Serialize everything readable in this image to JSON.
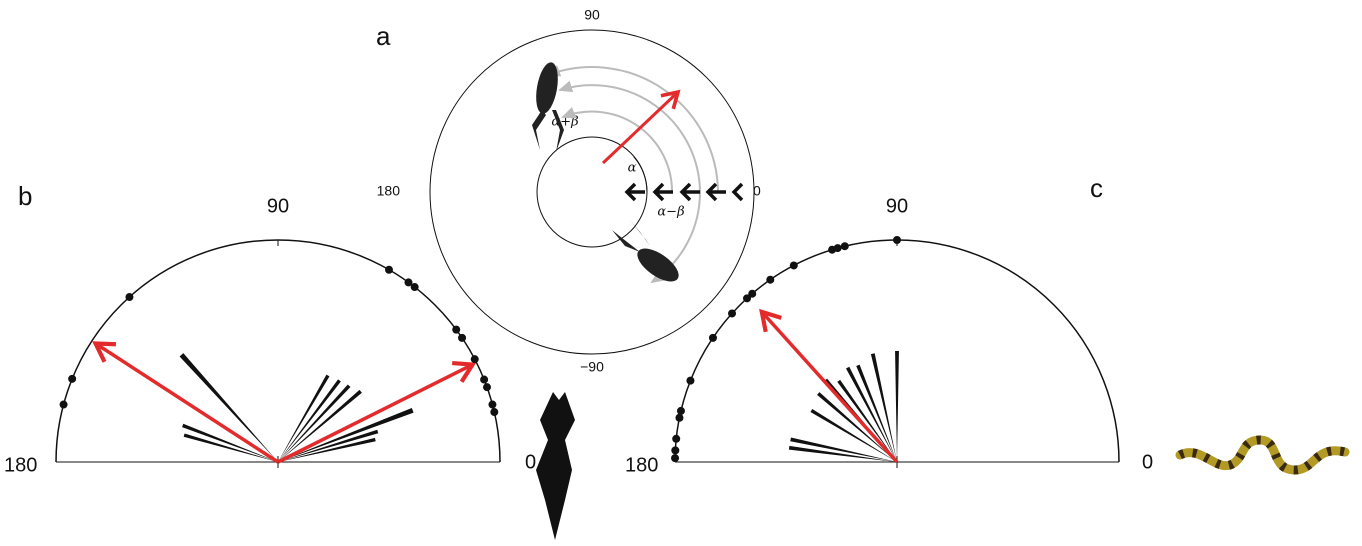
{
  "panel_a": {
    "label": "a",
    "angle_labels": {
      "top": "90",
      "bottom": "−90",
      "left": "180",
      "right": "0"
    },
    "angles": {
      "sum": "α+β",
      "alpha": "α",
      "diff": "α−β"
    }
  },
  "panel_b": {
    "label": "b",
    "angle_labels": {
      "top": "90",
      "left": "180",
      "right": "0"
    },
    "points": [
      132,
      158,
      165,
      60,
      54,
      52,
      36.6,
      34,
      27.6,
      21.8,
      19.7,
      15,
      13
    ],
    "mean_vectors": [
      {
        "angle": 147,
        "length": 0.98
      },
      {
        "angle": 26.6,
        "length": 0.98
      }
    ],
    "rose": [
      {
        "angle": 132,
        "length": 0.65
      },
      {
        "angle": 159,
        "length": 0.46
      },
      {
        "angle": 164,
        "length": 0.44
      },
      {
        "angle": 60,
        "length": 0.45
      },
      {
        "angle": 53,
        "length": 0.46
      },
      {
        "angle": 47,
        "length": 0.47
      },
      {
        "angle": 40.5,
        "length": 0.49
      },
      {
        "angle": 21,
        "length": 0.65
      },
      {
        "angle": 17,
        "length": 0.47
      },
      {
        "angle": 13,
        "length": 0.45
      }
    ]
  },
  "panel_c": {
    "label": "c",
    "angle_labels": {
      "top": "90",
      "left": "180",
      "right": "0"
    },
    "points": [
      90,
      103.6,
      105.5,
      107,
      117.7,
      124.8,
      130.7,
      132.5,
      138,
      146,
      158.5,
      166.7,
      168.5,
      174,
      177,
      179
    ],
    "mean_vectors": [
      {
        "angle": 132,
        "length": 0.91
      }
    ],
    "rose": [
      {
        "angle": 90,
        "length": 0.5
      },
      {
        "angle": 102.6,
        "length": 0.5
      },
      {
        "angle": 112,
        "length": 0.47
      },
      {
        "angle": 117.6,
        "length": 0.48
      },
      {
        "angle": 125.7,
        "length": 0.45
      },
      {
        "angle": 131,
        "length": 0.49
      },
      {
        "angle": 139,
        "length": 0.47
      },
      {
        "angle": 149,
        "length": 0.45
      },
      {
        "angle": 168,
        "length": 0.49
      },
      {
        "angle": 172.5,
        "length": 0.49
      }
    ]
  }
}
